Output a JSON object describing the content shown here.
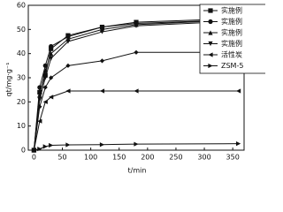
{
  "chart_data": {
    "type": "line",
    "x_label": "t/min",
    "y_label": "qt/mg·g⁻¹",
    "x": [
      0,
      10,
      20,
      30,
      60,
      120,
      180,
      360
    ],
    "series": [
      {
        "name": "实施例",
        "color": "#111111",
        "marker": "square",
        "values": [
          0,
          24,
          31,
          42,
          47.5,
          51,
          53,
          54.5
        ]
      },
      {
        "name": "实施例",
        "color": "#111111",
        "marker": "circle",
        "values": [
          0,
          26,
          35,
          43,
          47,
          51,
          52.5,
          54
        ]
      },
      {
        "name": "实施例",
        "color": "#111111",
        "marker": "triangle-up",
        "values": [
          0,
          23,
          33,
          40,
          46,
          50,
          52,
          54
        ]
      },
      {
        "name": "实施例",
        "color": "#111111",
        "marker": "triangle-down",
        "values": [
          0,
          21,
          30,
          38,
          45,
          49,
          51.5,
          53.5
        ]
      },
      {
        "name": null,
        "color": "#111111",
        "marker": "diamond",
        "values": [
          0,
          18,
          26,
          30,
          35,
          37,
          40.5,
          40.5
        ]
      },
      {
        "name": "活性炭",
        "color": "#111111",
        "marker": "triangle-left",
        "values": [
          0,
          12,
          20,
          22,
          24.5,
          24.5,
          24.5,
          24.5
        ]
      },
      {
        "name": "ZSM-5",
        "color": "#111111",
        "marker": "triangle-right",
        "values": [
          0,
          0.5,
          1.5,
          2,
          2.2,
          2.3,
          2.5,
          2.7
        ]
      }
    ],
    "xlim": [
      -10,
      370
    ],
    "xticks": [
      0,
      50,
      100,
      150,
      200,
      250,
      300,
      350
    ],
    "ylim": [
      0,
      60
    ],
    "yticks": [
      0,
      10,
      20,
      30,
      40,
      50,
      60
    ],
    "grid": false
  }
}
